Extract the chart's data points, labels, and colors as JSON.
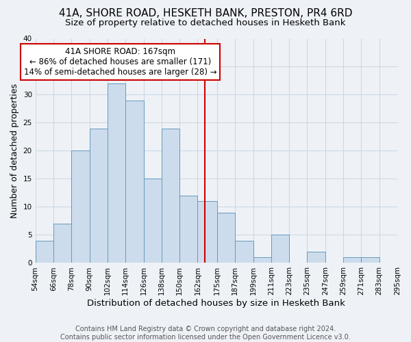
{
  "title": "41A, SHORE ROAD, HESKETH BANK, PRESTON, PR4 6RD",
  "subtitle": "Size of property relative to detached houses in Hesketh Bank",
  "xlabel": "Distribution of detached houses by size in Hesketh Bank",
  "ylabel": "Number of detached properties",
  "bin_labels": [
    "54sqm",
    "66sqm",
    "78sqm",
    "90sqm",
    "102sqm",
    "114sqm",
    "126sqm",
    "138sqm",
    "150sqm",
    "162sqm",
    "175sqm",
    "187sqm",
    "199sqm",
    "211sqm",
    "223sqm",
    "235sqm",
    "247sqm",
    "259sqm",
    "271sqm",
    "283sqm",
    "295sqm"
  ],
  "bin_edges": [
    54,
    66,
    78,
    90,
    102,
    114,
    126,
    138,
    150,
    162,
    175,
    187,
    199,
    211,
    223,
    235,
    247,
    259,
    271,
    283,
    295
  ],
  "counts": [
    4,
    7,
    20,
    24,
    32,
    29,
    15,
    24,
    12,
    11,
    9,
    4,
    1,
    5,
    0,
    2,
    0,
    1,
    1,
    0
  ],
  "bar_color": "#ccdcec",
  "bar_edge_color": "#6699bb",
  "vline_x": 167,
  "vline_color": "#cc0000",
  "annotation_text": "41A SHORE ROAD: 167sqm\n← 86% of detached houses are smaller (171)\n14% of semi-detached houses are larger (28) →",
  "annotation_box_edge_color": "#cc0000",
  "annotation_box_face_color": "#ffffff",
  "ylim": [
    0,
    40
  ],
  "yticks": [
    0,
    5,
    10,
    15,
    20,
    25,
    30,
    35,
    40
  ],
  "grid_color": "#ccd8e4",
  "footer_text": "Contains HM Land Registry data © Crown copyright and database right 2024.\nContains public sector information licensed under the Open Government Licence v3.0.",
  "bg_color": "#eef2f7",
  "title_fontsize": 11,
  "subtitle_fontsize": 9.5,
  "xlabel_fontsize": 9.5,
  "ylabel_fontsize": 9,
  "footer_fontsize": 7,
  "annotation_fontsize": 8.5,
  "tick_fontsize": 7.5
}
